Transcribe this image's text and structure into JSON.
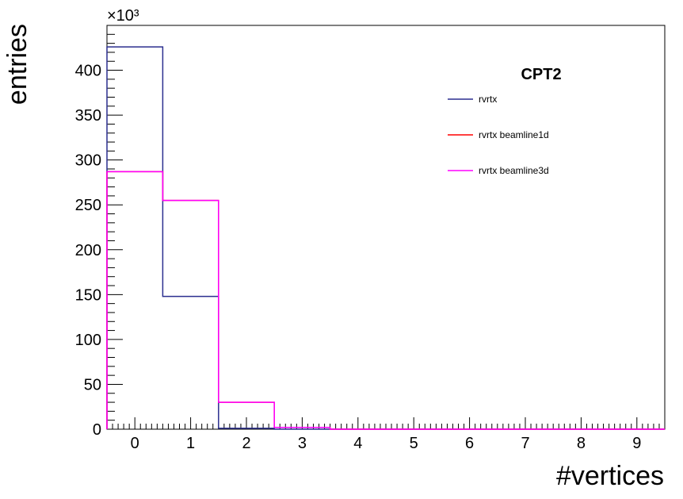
{
  "chart_data": {
    "type": "bar",
    "style": "step-histogram",
    "title": "",
    "xlabel": "#vertices",
    "ylabel": "entries",
    "y_exponent_label": "×10³",
    "xlim": [
      -0.5,
      9.5
    ],
    "ylim": [
      0,
      450
    ],
    "x_ticks": [
      "0",
      "1",
      "2",
      "3",
      "4",
      "5",
      "6",
      "7",
      "8",
      "9"
    ],
    "y_ticks": [
      "0",
      "50",
      "100",
      "150",
      "200",
      "250",
      "300",
      "350",
      "400"
    ],
    "bins": [
      0,
      1,
      2,
      3,
      4,
      5,
      6,
      7,
      8,
      9
    ],
    "grid": false,
    "legend": {
      "title": "CPT2",
      "position": "top-right"
    },
    "series": [
      {
        "name": "rvrtx",
        "color": "#2b2f8f",
        "values": [
          426,
          148,
          1,
          0,
          0,
          0,
          0,
          0,
          0,
          0
        ]
      },
      {
        "name": "rvrtx beamline1d",
        "color": "#ff0000",
        "values": [
          287,
          255,
          30,
          2,
          0,
          0,
          0,
          0,
          0,
          0
        ]
      },
      {
        "name": "rvrtx beamline3d",
        "color": "#ff00ff",
        "values": [
          287,
          255,
          30,
          2,
          0,
          0,
          0,
          0,
          0,
          0
        ]
      }
    ]
  }
}
